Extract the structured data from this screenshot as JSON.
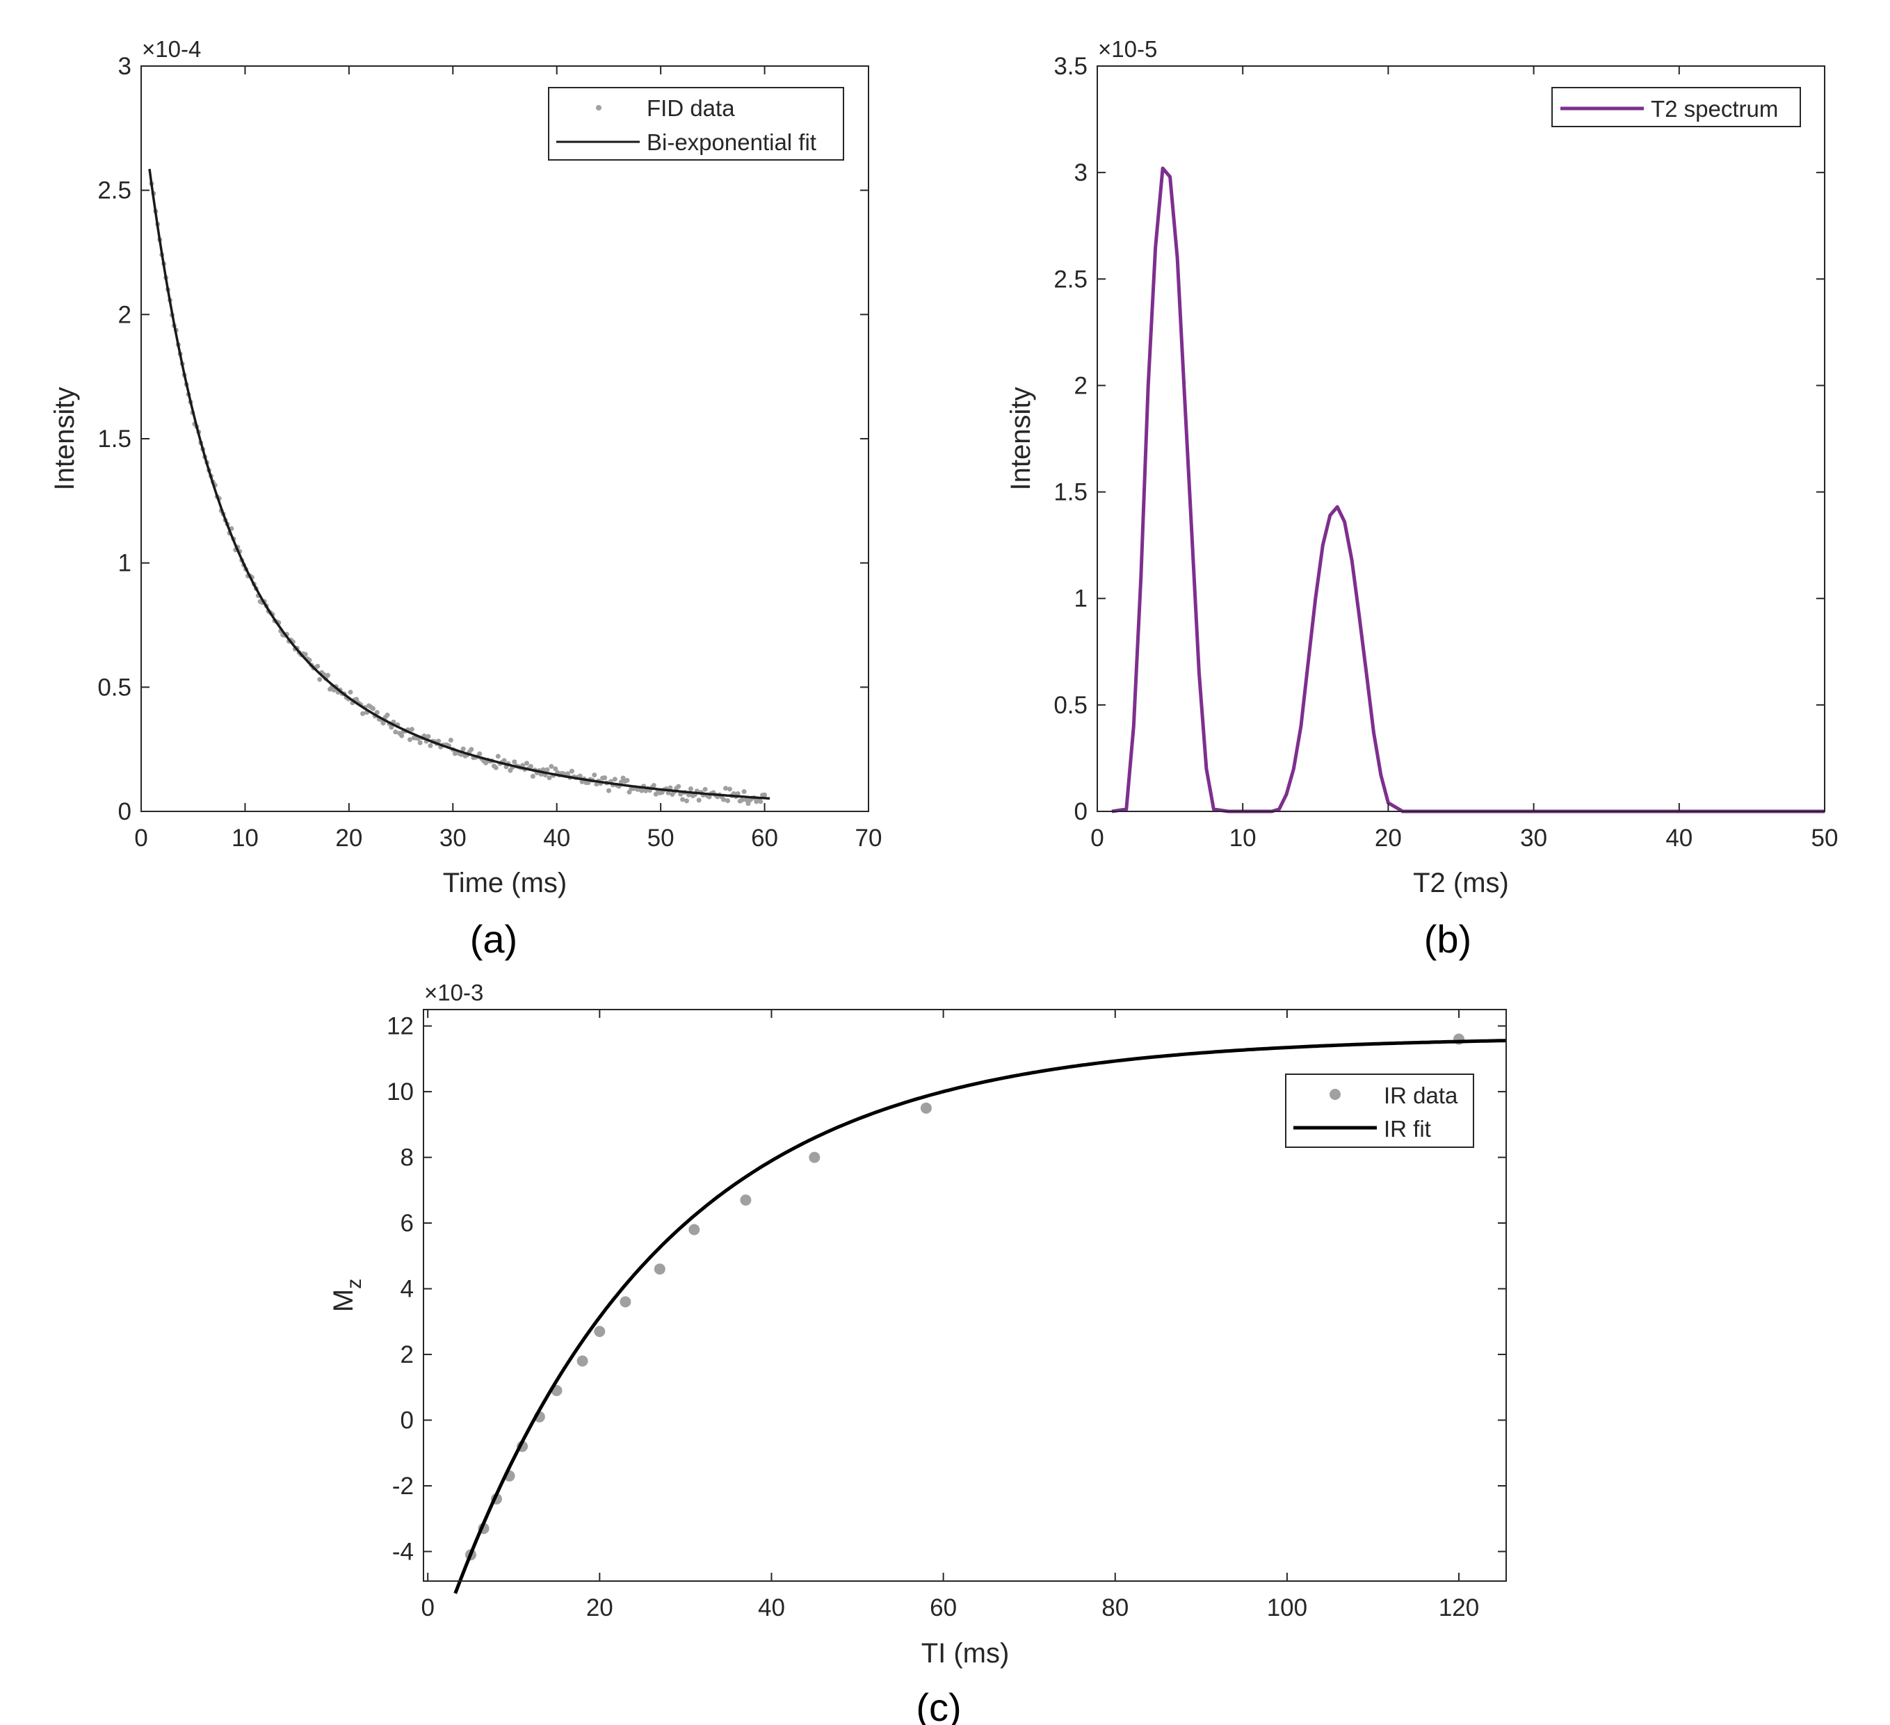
{
  "colors": {
    "axis": "#262626",
    "data_gray": "#a0a0a0",
    "fit_black": "#1a1a1a",
    "spectrum_purple": "#7e2f8e"
  },
  "captions": [
    "(a)",
    "(b)",
    "(c)"
  ],
  "chart_data": [
    {
      "type": "scatter",
      "panel": "a",
      "xlabel": "Time (ms)",
      "ylabel": "Intensity",
      "y_exponent": "×10-4",
      "xlim": [
        0,
        70
      ],
      "ylim": [
        0,
        0.0003
      ],
      "xticks": [
        0,
        10,
        20,
        30,
        40,
        50,
        60,
        70
      ],
      "yticks": [
        0,
        5e-05,
        0.0001,
        0.00015,
        0.0002,
        0.00025,
        0.0003
      ],
      "xtick_labels": [
        "0",
        "10",
        "20",
        "30",
        "40",
        "50",
        "60",
        "70"
      ],
      "ytick_labels": [
        "0",
        "0.5",
        "1",
        "1.5",
        "2",
        "2.5",
        "3"
      ],
      "legend_position": "top-right",
      "grid": false,
      "series": [
        {
          "name": "FID data",
          "kind": "points",
          "color": "#a0a0a0",
          "x_range": [
            1,
            60
          ],
          "point_count": 300,
          "model": {
            "a1": 0.000178,
            "t1": 6,
            "a2": 0.000107,
            "t2": 20
          },
          "noise": 2.5e-06
        },
        {
          "name": "Bi-exponential fit",
          "kind": "line",
          "color": "#1a1a1a",
          "x_range": [
            0.8,
            60.5
          ],
          "model": {
            "a1": 0.000178,
            "t1": 6,
            "a2": 0.000107,
            "t2": 20
          }
        }
      ]
    },
    {
      "type": "line",
      "panel": "b",
      "xlabel": "T2 (ms)",
      "ylabel": "Intensity",
      "y_exponent": "×10-5",
      "xlim": [
        0,
        50
      ],
      "ylim": [
        0,
        3.5e-05
      ],
      "xticks": [
        0,
        10,
        20,
        30,
        40,
        50
      ],
      "yticks": [
        0,
        5e-06,
        1e-05,
        1.5e-05,
        2e-05,
        2.5e-05,
        3e-05,
        3.5e-05
      ],
      "xtick_labels": [
        "0",
        "10",
        "20",
        "30",
        "40",
        "50"
      ],
      "ytick_labels": [
        "0",
        "0.5",
        "1",
        "1.5",
        "2",
        "2.5",
        "3",
        "3.5"
      ],
      "legend_position": "top-right",
      "grid": false,
      "series": [
        {
          "name": "T2 spectrum",
          "color": "#7e2f8e",
          "x": [
            1,
            2,
            2.5,
            3,
            3.5,
            4,
            4.5,
            5,
            5.5,
            6,
            6.5,
            7,
            7.5,
            8,
            9,
            10,
            11,
            12,
            12.5,
            13,
            13.5,
            14,
            14.5,
            15,
            15.5,
            16,
            16.5,
            17,
            17.5,
            18,
            18.5,
            19,
            19.5,
            20,
            21,
            25,
            30,
            35,
            40,
            45,
            50
          ],
          "values": [
            0,
            1e-07,
            4e-06,
            1.1e-05,
            2e-05,
            2.65e-05,
            3.02e-05,
            2.98e-05,
            2.6e-05,
            1.95e-05,
            1.3e-05,
            6.5e-06,
            2e-06,
            1e-07,
            0,
            0,
            0,
            0,
            1e-07,
            8e-07,
            2e-06,
            4e-06,
            7e-06,
            1e-05,
            1.25e-05,
            1.39e-05,
            1.43e-05,
            1.36e-05,
            1.18e-05,
            9.2e-06,
            6.5e-06,
            3.7e-06,
            1.7e-06,
            4e-07,
            0,
            0,
            0,
            0,
            0,
            0,
            0
          ]
        }
      ]
    },
    {
      "type": "scatter",
      "panel": "c",
      "xlabel": "TI (ms)",
      "ylabel_main": "M",
      "ylabel_sub": "z",
      "y_exponent": "×10-3",
      "xlim": [
        -0.5,
        125.5
      ],
      "ylim": [
        -0.0049,
        0.0125
      ],
      "xticks": [
        0,
        20,
        40,
        60,
        80,
        100,
        120
      ],
      "yticks": [
        -0.004,
        -0.002,
        0,
        0.002,
        0.004,
        0.006,
        0.008,
        0.01,
        0.012
      ],
      "xtick_labels": [
        "0",
        "20",
        "40",
        "60",
        "80",
        "100",
        "120"
      ],
      "ytick_labels": [
        "-4",
        "-2",
        "0",
        "2",
        "4",
        "6",
        "8",
        "10",
        "12"
      ],
      "legend_position": "upper-right",
      "grid": false,
      "series": [
        {
          "name": "IR data",
          "kind": "points",
          "color": "#a0a0a0",
          "x": [
            5,
            6.5,
            8,
            9.5,
            11,
            13,
            15,
            18,
            20,
            23,
            27,
            31,
            37,
            45,
            58,
            120
          ],
          "values": [
            -0.0041,
            -0.0033,
            -0.0024,
            -0.0017,
            -0.0008,
            0.0001,
            0.0009,
            0.0018,
            0.0027,
            0.0036,
            0.0046,
            0.0058,
            0.0067,
            0.008,
            0.0095,
            0.0116
          ]
        },
        {
          "name": "IR fit",
          "kind": "line",
          "color": "#000000",
          "x_range": [
            3.2,
            125.5
          ],
          "model": {
            "a": 0.01167,
            "b": 0.01931,
            "t1": 24.5
          }
        }
      ]
    }
  ]
}
